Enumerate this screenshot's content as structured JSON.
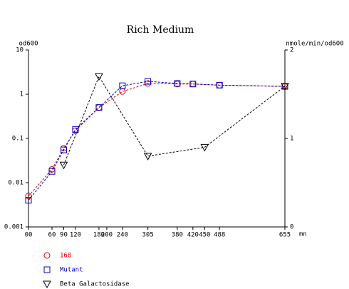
{
  "chart_data": {
    "type": "line",
    "title": "Rich Medium",
    "ylabel": "od600",
    "y2label": "nmole/min/od600",
    "xlabel": "mn",
    "xlim": [
      0,
      655
    ],
    "xticks": [
      {
        "value": 0,
        "label": "00"
      },
      60,
      90,
      120,
      180,
      200,
      240,
      305,
      380,
      420,
      450,
      488,
      655
    ],
    "ylim": [
      0.001,
      10
    ],
    "ylog": true,
    "yticks": [
      0.001,
      0.01,
      0.1,
      1,
      10
    ],
    "y2lim": [
      0,
      2
    ],
    "y2ticks": [
      0,
      1,
      2
    ],
    "series": [
      {
        "name": "168",
        "color": "#e00000",
        "marker": "circle",
        "axis": "y",
        "x": [
          0,
          60,
          90,
          120,
          180,
          240,
          305,
          380,
          420,
          488,
          655
        ],
        "values": [
          0.005,
          0.02,
          0.06,
          0.15,
          0.5,
          1.15,
          1.75,
          1.7,
          1.7,
          1.6,
          1.5
        ]
      },
      {
        "name": "Mutant",
        "color": "#0000c0",
        "marker": "square",
        "axis": "y",
        "x": [
          0,
          60,
          90,
          120,
          180,
          240,
          305,
          380,
          420,
          488,
          655
        ],
        "values": [
          0.004,
          0.018,
          0.055,
          0.16,
          0.5,
          1.55,
          1.95,
          1.75,
          1.7,
          1.6,
          1.5
        ]
      },
      {
        "name": "Beta Galactosidase",
        "color": "#000000",
        "marker": "triangle-down",
        "axis": "y2",
        "x": [
          90,
          180,
          305,
          450,
          655
        ],
        "values": [
          0.7,
          1.7,
          0.8,
          0.9,
          1.59
        ]
      }
    ]
  }
}
